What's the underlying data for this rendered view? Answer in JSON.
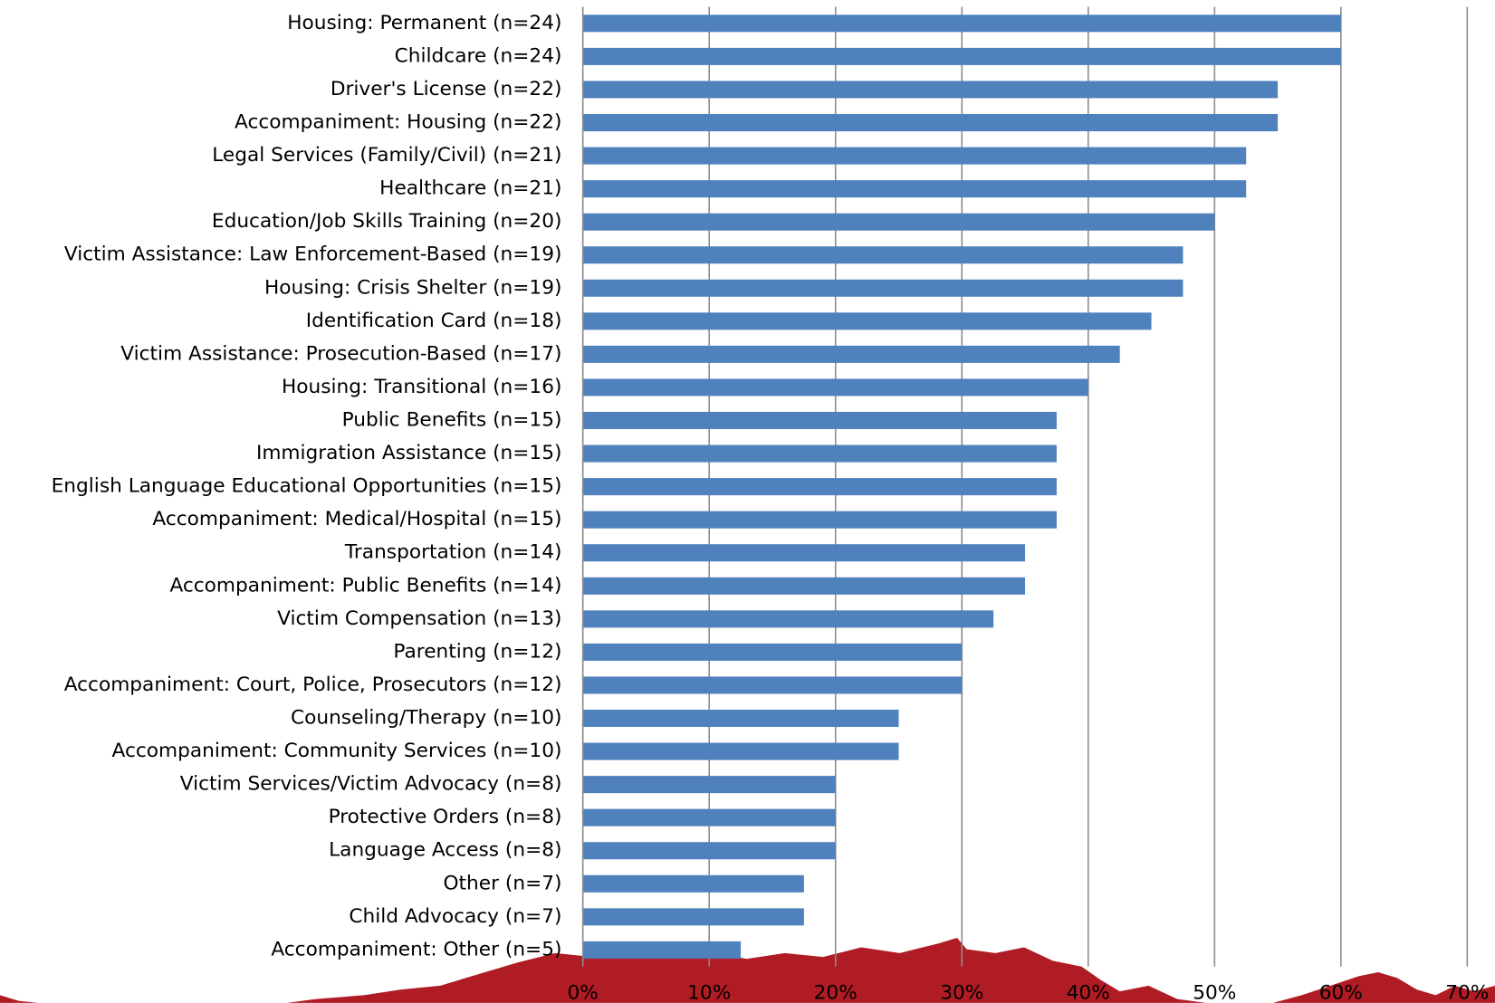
{
  "chart_data": {
    "type": "hbar",
    "categories": [
      "Housing: Permanent (n=24)",
      "Childcare (n=24)",
      "Driver's License (n=22)",
      "Accompaniment: Housing (n=22)",
      "Legal Services (Family/Civil) (n=21)",
      "Healthcare (n=21)",
      "Education/Job Skills Training (n=20)",
      "Victim Assistance: Law Enforcement-Based (n=19)",
      "Housing: Crisis Shelter (n=19)",
      "Identification Card (n=18)",
      "Victim Assistance: Prosecution-Based (n=17)",
      "Housing: Transitional (n=16)",
      "Public Benefits (n=15)",
      "Immigration Assistance (n=15)",
      "English Language Educational Opportunities (n=15)",
      "Accompaniment: Medical/Hospital (n=15)",
      "Transportation (n=14)",
      "Accompaniment: Public Benefits (n=14)",
      "Victim Compensation (n=13)",
      "Parenting (n=12)",
      "Accompaniment: Court, Police, Prosecutors (n=12)",
      "Counseling/Therapy (n=10)",
      "Accompaniment: Community Services (n=10)",
      "Victim Services/Victim Advocacy (n=8)",
      "Protective Orders (n=8)",
      "Language Access (n=8)",
      "Other (n=7)",
      "Child Advocacy (n=7)",
      "Accompaniment: Other (n=5)"
    ],
    "values": [
      60,
      60,
      55,
      55,
      52.5,
      52.5,
      50,
      47.5,
      47.5,
      45,
      42.5,
      40,
      37.5,
      37.5,
      37.5,
      37.5,
      35,
      35,
      32.5,
      30,
      30,
      25,
      25,
      20,
      20,
      20,
      17.5,
      17.5,
      12.5
    ],
    "color": "#4f81bd",
    "xlim": [
      0,
      70
    ],
    "xticks": [
      {
        "value": 0,
        "label": "0%"
      },
      {
        "value": 10,
        "label": "10%"
      },
      {
        "value": 20,
        "label": "20%"
      },
      {
        "value": 30,
        "label": "30%"
      },
      {
        "value": 40,
        "label": "40%"
      },
      {
        "value": 50,
        "label": "50%"
      },
      {
        "value": 60,
        "label": "60%"
      },
      {
        "value": 70,
        "label": "70%"
      }
    ],
    "grid": true
  }
}
